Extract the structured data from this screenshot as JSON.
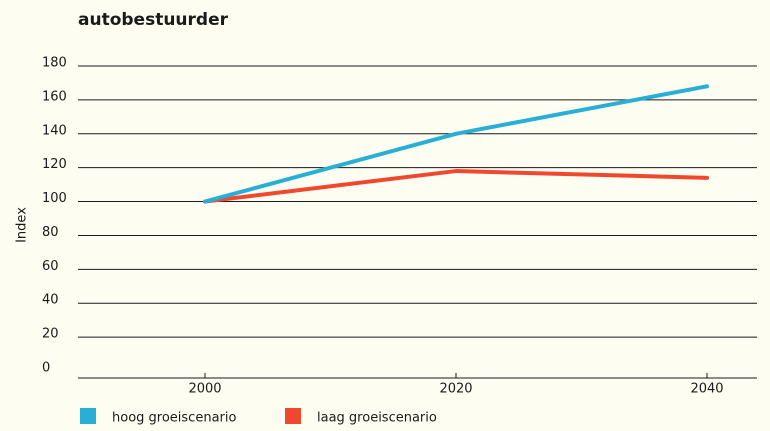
{
  "chart_data": {
    "type": "line",
    "title": "autobestuurder",
    "y_label": "Index",
    "categories": [
      "2000",
      "2020",
      "2040"
    ],
    "series": [
      {
        "name": "hoog groeiscenario",
        "color": "#29afd6",
        "values": [
          100,
          140,
          168
        ]
      },
      {
        "name": "laag groeiscenario",
        "color": "#f0482f",
        "values": [
          100,
          118,
          114
        ]
      }
    ],
    "ylim": [
      0,
      180
    ],
    "yticks": [
      0,
      20,
      40,
      60,
      80,
      100,
      120,
      140,
      160,
      180
    ],
    "grid": true
  }
}
